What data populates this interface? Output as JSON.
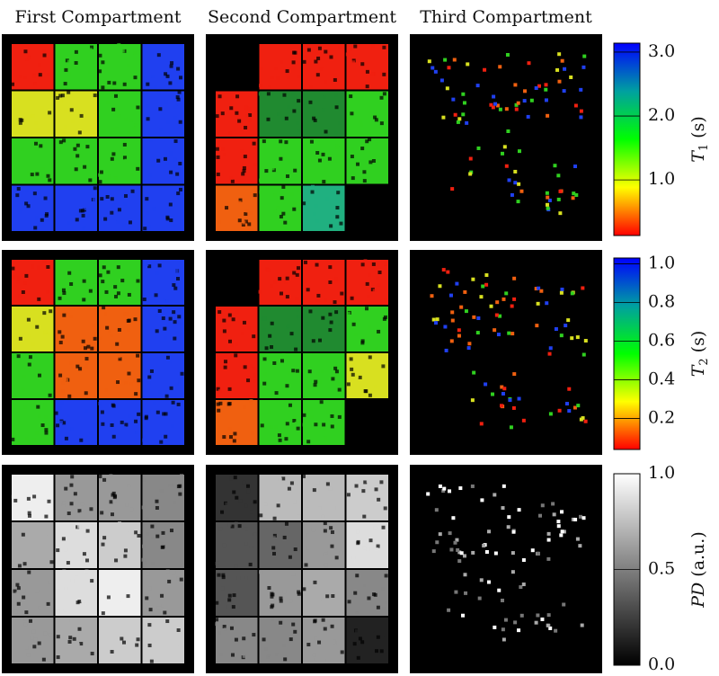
{
  "columns": [
    "First Compartment",
    "Second Compartment",
    "Third Compartment"
  ],
  "rows": [
    {
      "label_symbol": "T",
      "label_subscript": "1",
      "label_unit": "(s)",
      "lim": [
        0.13,
        3.14
      ],
      "ticks": [
        {
          "value": 1,
          "label": "1.0"
        },
        {
          "value": 2,
          "label": "2.0"
        },
        {
          "value": 3,
          "label": "3.0"
        }
      ],
      "colors": [
        "#ff0000",
        "#ffff00",
        "#00ff00",
        "#00a0a0",
        "#0000ff"
      ]
    },
    {
      "label_symbol": "T",
      "label_subscript": "2",
      "label_unit": "(s)",
      "lim": [
        0.04,
        1.03
      ],
      "ticks": [
        {
          "value": 0.2,
          "label": "0.2"
        },
        {
          "value": 0.4,
          "label": "0.4"
        },
        {
          "value": 0.6,
          "label": "0.6"
        },
        {
          "value": 0.8,
          "label": "0.8"
        },
        {
          "value": 1,
          "label": "1.0"
        }
      ],
      "colors": [
        "#ff0000",
        "#ffff00",
        "#00ff00",
        "#00a0a0",
        "#0000ff"
      ]
    },
    {
      "label_symbol": "PD",
      "label_subscript": null,
      "label_unit": "(a.u.)",
      "lim": [
        0,
        1
      ],
      "ticks": [
        {
          "value": 0,
          "label": "0.0"
        },
        {
          "value": 0.5,
          "label": "0.5"
        },
        {
          "value": 1,
          "label": "1.0"
        }
      ],
      "colors": [
        "#000000",
        "#ffffff"
      ]
    }
  ]
}
